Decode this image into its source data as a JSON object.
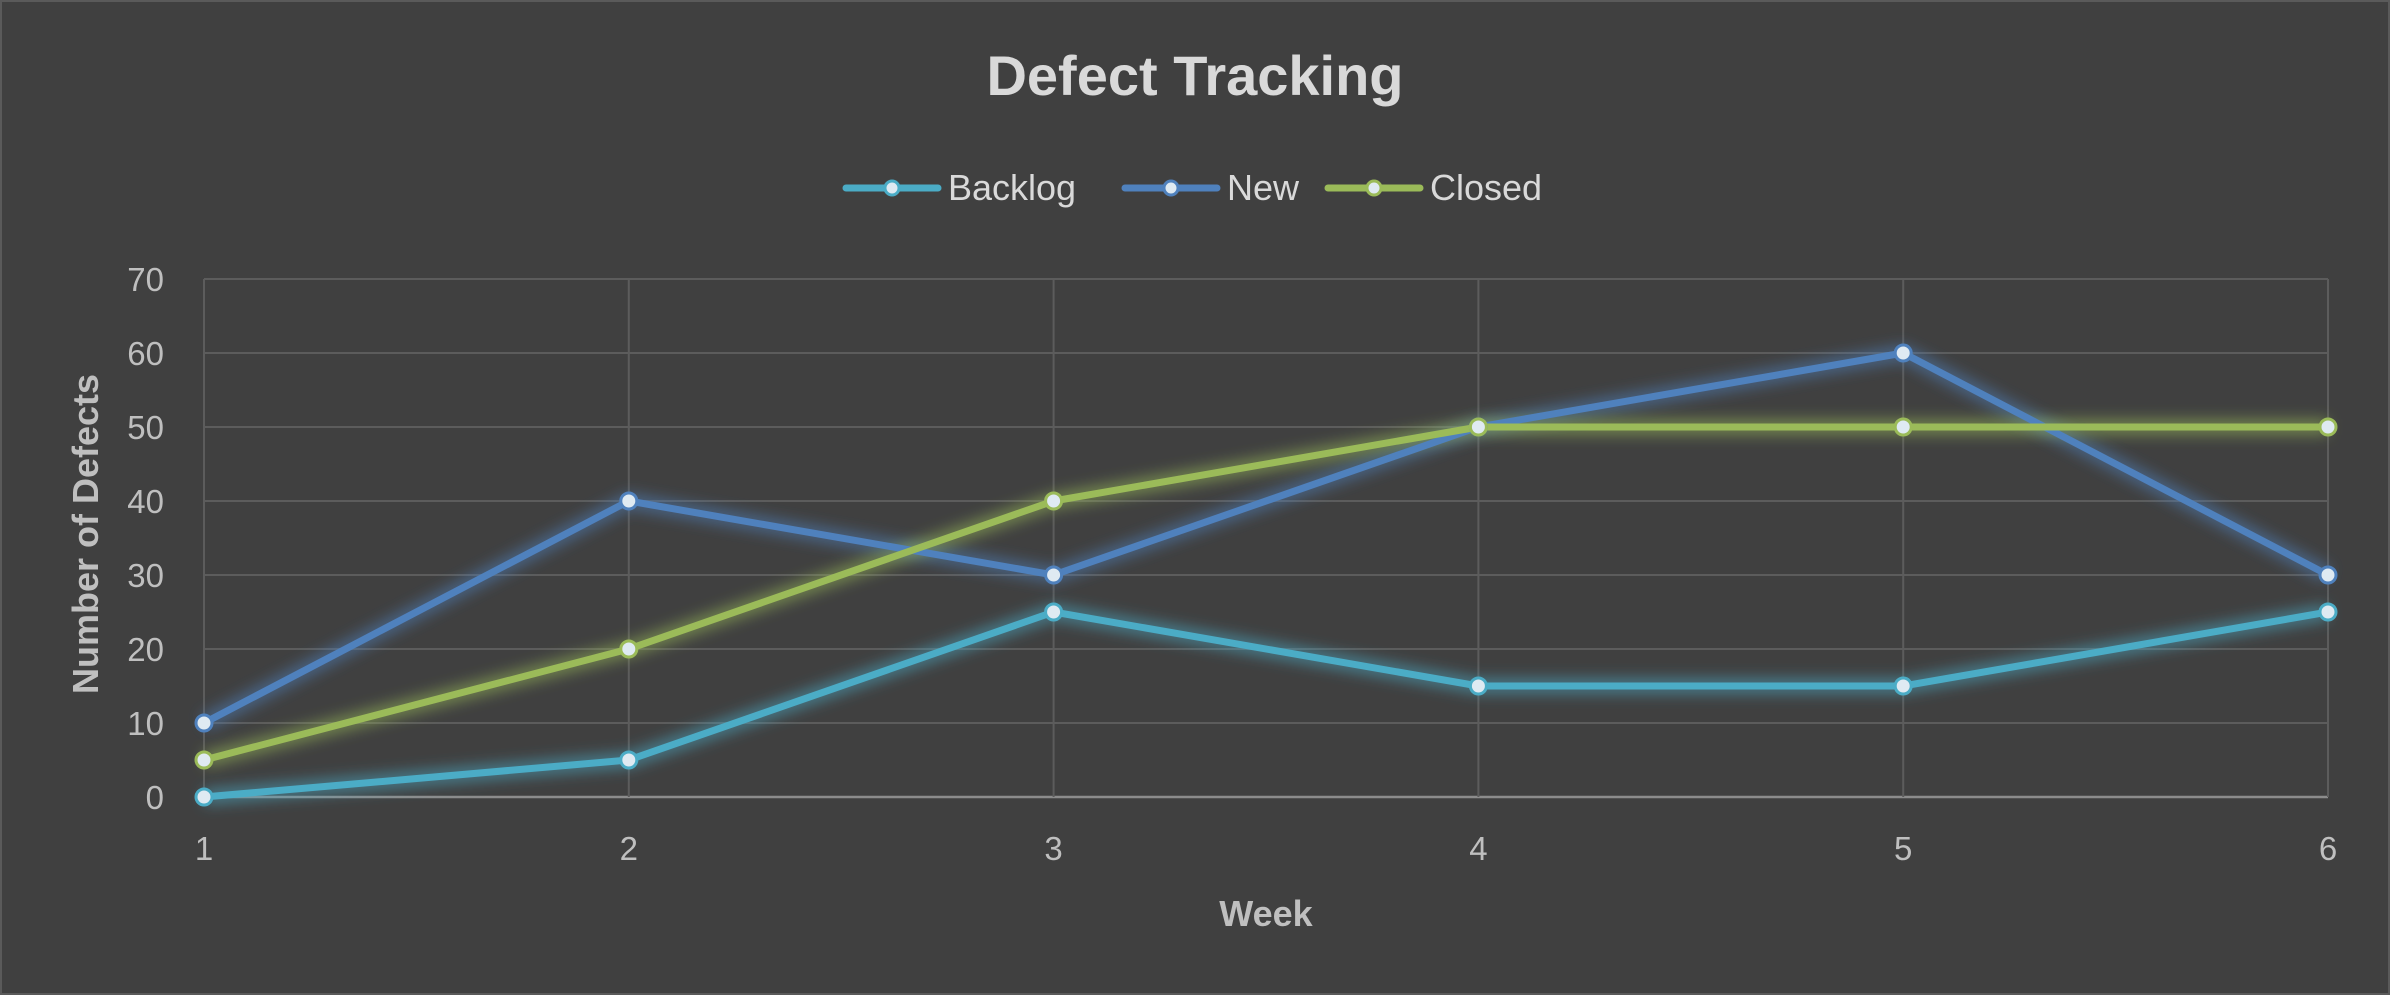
{
  "chart_data": {
    "type": "line",
    "title": "Defect Tracking",
    "xlabel": "Week",
    "ylabel": "Number of Defects",
    "x": [
      1,
      2,
      3,
      4,
      5,
      6
    ],
    "ylim": [
      0,
      70
    ],
    "yticks": [
      0,
      10,
      20,
      30,
      40,
      50,
      60,
      70
    ],
    "grid": true,
    "legend_position": "top",
    "series": [
      {
        "name": "Backlog",
        "color": "#4bacc6",
        "values": [
          0,
          5,
          25,
          15,
          15,
          25
        ]
      },
      {
        "name": "New",
        "color": "#4f81bd",
        "values": [
          10,
          40,
          30,
          50,
          60,
          30
        ]
      },
      {
        "name": "Closed",
        "color": "#9bbb59",
        "values": [
          5,
          20,
          40,
          50,
          50,
          50
        ]
      }
    ]
  }
}
